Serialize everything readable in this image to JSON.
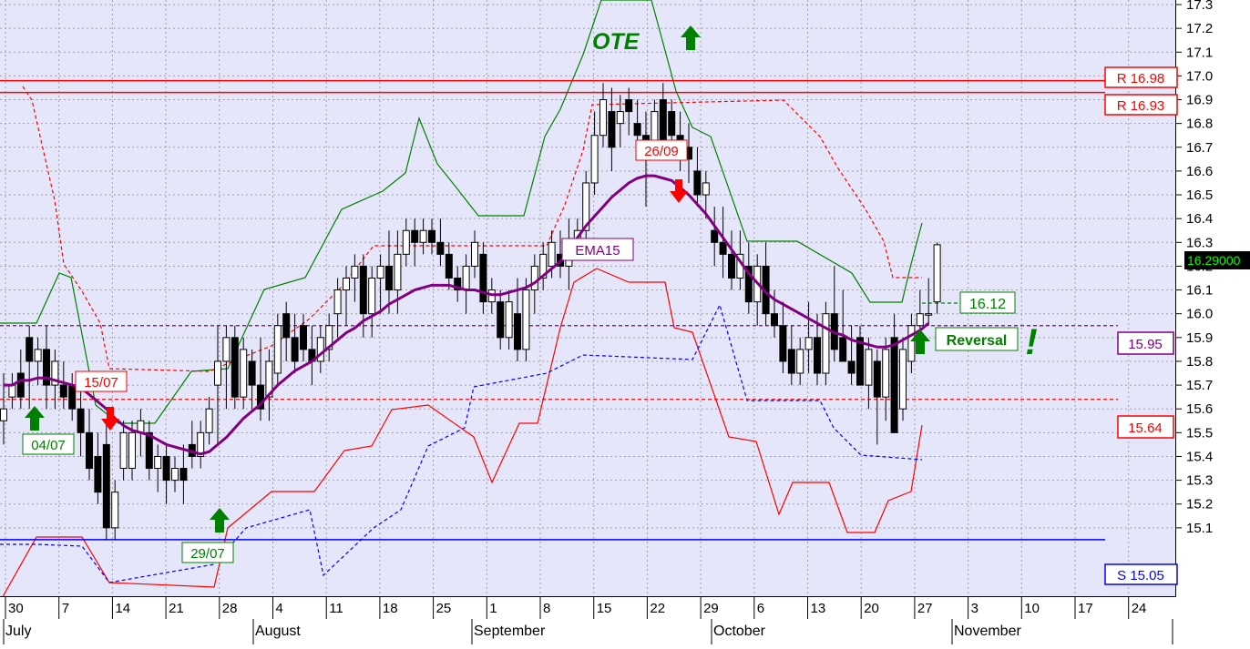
{
  "chart_data": {
    "type": "candlestick",
    "title": "",
    "xlabel": "",
    "ylabel": "",
    "ylim": [
      15.0,
      17.3
    ],
    "yticks": [
      "17.3",
      "17.2",
      "17.1",
      "17.0",
      "16.9",
      "16.8",
      "16.7",
      "16.6",
      "16.5",
      "16.4",
      "16.3",
      "16.2",
      "16.1",
      "16.0",
      "15.9",
      "15.8",
      "15.7",
      "15.6",
      "15.5",
      "15.4",
      "15.3",
      "15.2",
      "15.1"
    ],
    "day_labels": [
      "30",
      "7",
      "14",
      "21",
      "28",
      "4",
      "11",
      "18",
      "25",
      "1",
      "8",
      "15",
      "22",
      "29",
      "6",
      "13",
      "20",
      "27",
      "3",
      "10",
      "17",
      "24"
    ],
    "month_labels": [
      "July",
      "August",
      "September",
      "October",
      "November"
    ],
    "current_price_label": "16.29000",
    "candles": [
      {
        "o": 15.55,
        "h": 15.75,
        "l": 15.45,
        "c": 15.6
      },
      {
        "o": 15.65,
        "h": 15.75,
        "l": 15.6,
        "c": 15.7
      },
      {
        "o": 15.75,
        "h": 15.85,
        "l": 15.6,
        "c": 15.65
      },
      {
        "o": 15.9,
        "h": 15.95,
        "l": 15.6,
        "c": 15.8
      },
      {
        "o": 15.8,
        "h": 15.9,
        "l": 15.7,
        "c": 15.85
      },
      {
        "o": 15.85,
        "h": 15.95,
        "l": 15.6,
        "c": 15.7
      },
      {
        "o": 15.7,
        "h": 15.85,
        "l": 15.6,
        "c": 15.8
      },
      {
        "o": 15.7,
        "h": 15.8,
        "l": 15.6,
        "c": 15.65
      },
      {
        "o": 15.7,
        "h": 15.75,
        "l": 15.55,
        "c": 15.6
      },
      {
        "o": 15.6,
        "h": 15.7,
        "l": 15.4,
        "c": 15.5
      },
      {
        "o": 15.5,
        "h": 15.6,
        "l": 15.3,
        "c": 15.35
      },
      {
        "o": 15.4,
        "h": 15.5,
        "l": 15.2,
        "c": 15.25
      },
      {
        "o": 15.45,
        "h": 15.55,
        "l": 15.05,
        "c": 15.1
      },
      {
        "o": 15.1,
        "h": 15.3,
        "l": 15.05,
        "c": 15.25
      },
      {
        "o": 15.35,
        "h": 15.55,
        "l": 15.3,
        "c": 15.5
      },
      {
        "o": 15.35,
        "h": 15.55,
        "l": 15.3,
        "c": 15.5
      },
      {
        "o": 15.5,
        "h": 15.6,
        "l": 15.4,
        "c": 15.55
      },
      {
        "o": 15.5,
        "h": 15.55,
        "l": 15.3,
        "c": 15.35
      },
      {
        "o": 15.35,
        "h": 15.45,
        "l": 15.25,
        "c": 15.4
      },
      {
        "o": 15.4,
        "h": 15.45,
        "l": 15.2,
        "c": 15.3
      },
      {
        "o": 15.3,
        "h": 15.4,
        "l": 15.25,
        "c": 15.35
      },
      {
        "o": 15.35,
        "h": 15.45,
        "l": 15.2,
        "c": 15.3
      },
      {
        "o": 15.45,
        "h": 15.55,
        "l": 15.35,
        "c": 15.4
      },
      {
        "o": 15.4,
        "h": 15.55,
        "l": 15.35,
        "c": 15.5
      },
      {
        "o": 15.5,
        "h": 15.65,
        "l": 15.45,
        "c": 15.6
      },
      {
        "o": 15.7,
        "h": 15.95,
        "l": 15.45,
        "c": 15.8
      },
      {
        "o": 15.8,
        "h": 15.95,
        "l": 15.6,
        "c": 15.9
      },
      {
        "o": 15.9,
        "h": 15.95,
        "l": 15.6,
        "c": 15.65
      },
      {
        "o": 15.65,
        "h": 15.9,
        "l": 15.6,
        "c": 15.85
      },
      {
        "o": 15.8,
        "h": 15.85,
        "l": 15.6,
        "c": 15.7
      },
      {
        "o": 15.7,
        "h": 15.9,
        "l": 15.55,
        "c": 15.6
      },
      {
        "o": 15.65,
        "h": 15.85,
        "l": 15.55,
        "c": 15.8
      },
      {
        "o": 15.75,
        "h": 16.0,
        "l": 15.7,
        "c": 15.95
      },
      {
        "o": 16.0,
        "h": 16.05,
        "l": 15.8,
        "c": 15.9
      },
      {
        "o": 15.9,
        "h": 16.0,
        "l": 15.75,
        "c": 15.8
      },
      {
        "o": 15.95,
        "h": 16.0,
        "l": 15.8,
        "c": 15.85
      },
      {
        "o": 15.85,
        "h": 15.95,
        "l": 15.7,
        "c": 15.8
      },
      {
        "o": 15.8,
        "h": 15.95,
        "l": 15.75,
        "c": 15.9
      },
      {
        "o": 15.85,
        "h": 16.0,
        "l": 15.8,
        "c": 15.95
      },
      {
        "o": 16.0,
        "h": 16.15,
        "l": 15.9,
        "c": 16.1
      },
      {
        "o": 16.1,
        "h": 16.2,
        "l": 15.95,
        "c": 16.15
      },
      {
        "o": 16.15,
        "h": 16.25,
        "l": 16.05,
        "c": 16.2
      },
      {
        "o": 16.2,
        "h": 16.25,
        "l": 15.9,
        "c": 16.0
      },
      {
        "o": 16.0,
        "h": 16.2,
        "l": 15.9,
        "c": 16.15
      },
      {
        "o": 16.15,
        "h": 16.25,
        "l": 16.0,
        "c": 16.2
      },
      {
        "o": 16.2,
        "h": 16.35,
        "l": 16.0,
        "c": 16.1
      },
      {
        "o": 16.1,
        "h": 16.35,
        "l": 16.0,
        "c": 16.25
      },
      {
        "o": 16.25,
        "h": 16.4,
        "l": 16.2,
        "c": 16.35
      },
      {
        "o": 16.35,
        "h": 16.4,
        "l": 16.2,
        "c": 16.3
      },
      {
        "o": 16.3,
        "h": 16.4,
        "l": 16.25,
        "c": 16.35
      },
      {
        "o": 16.35,
        "h": 16.4,
        "l": 16.25,
        "c": 16.3
      },
      {
        "o": 16.3,
        "h": 16.4,
        "l": 16.2,
        "c": 16.25
      },
      {
        "o": 16.25,
        "h": 16.3,
        "l": 16.1,
        "c": 16.15
      },
      {
        "o": 16.15,
        "h": 16.2,
        "l": 16.05,
        "c": 16.1
      },
      {
        "o": 16.1,
        "h": 16.25,
        "l": 16.0,
        "c": 16.2
      },
      {
        "o": 16.2,
        "h": 16.35,
        "l": 16.15,
        "c": 16.3
      },
      {
        "o": 16.25,
        "h": 16.3,
        "l": 16.0,
        "c": 16.05
      },
      {
        "o": 16.05,
        "h": 16.15,
        "l": 16.0,
        "c": 16.1
      },
      {
        "o": 16.05,
        "h": 16.1,
        "l": 15.85,
        "c": 15.9
      },
      {
        "o": 15.9,
        "h": 16.1,
        "l": 15.85,
        "c": 16.05
      },
      {
        "o": 16.0,
        "h": 16.15,
        "l": 15.8,
        "c": 15.85
      },
      {
        "o": 15.85,
        "h": 16.15,
        "l": 15.8,
        "c": 16.1
      },
      {
        "o": 16.1,
        "h": 16.25,
        "l": 16.0,
        "c": 16.2
      },
      {
        "o": 16.15,
        "h": 16.3,
        "l": 16.1,
        "c": 16.25
      },
      {
        "o": 16.2,
        "h": 16.35,
        "l": 16.15,
        "c": 16.3
      },
      {
        "o": 16.25,
        "h": 16.35,
        "l": 16.15,
        "c": 16.2
      },
      {
        "o": 16.2,
        "h": 16.4,
        "l": 16.1,
        "c": 16.3
      },
      {
        "o": 16.3,
        "h": 16.4,
        "l": 16.25,
        "c": 16.35
      },
      {
        "o": 16.35,
        "h": 16.6,
        "l": 16.3,
        "c": 16.55
      },
      {
        "o": 16.55,
        "h": 16.85,
        "l": 16.5,
        "c": 16.75
      },
      {
        "o": 16.75,
        "h": 16.97,
        "l": 16.7,
        "c": 16.9
      },
      {
        "o": 16.85,
        "h": 16.95,
        "l": 16.6,
        "c": 16.7
      },
      {
        "o": 16.8,
        "h": 16.92,
        "l": 16.7,
        "c": 16.85
      },
      {
        "o": 16.9,
        "h": 16.95,
        "l": 16.75,
        "c": 16.85
      },
      {
        "o": 16.8,
        "h": 16.9,
        "l": 16.65,
        "c": 16.75
      },
      {
        "o": 16.75,
        "h": 16.85,
        "l": 16.45,
        "c": 16.7
      },
      {
        "o": 16.7,
        "h": 16.9,
        "l": 16.65,
        "c": 16.85
      },
      {
        "o": 16.9,
        "h": 16.97,
        "l": 16.65,
        "c": 16.7
      },
      {
        "o": 16.85,
        "h": 16.9,
        "l": 16.65,
        "c": 16.75
      },
      {
        "o": 16.75,
        "h": 16.85,
        "l": 16.6,
        "c": 16.7
      },
      {
        "o": 16.7,
        "h": 16.8,
        "l": 16.55,
        "c": 16.65
      },
      {
        "o": 16.6,
        "h": 16.7,
        "l": 16.45,
        "c": 16.5
      },
      {
        "o": 16.5,
        "h": 16.6,
        "l": 16.4,
        "c": 16.55
      },
      {
        "o": 16.35,
        "h": 16.45,
        "l": 16.2,
        "c": 16.3
      },
      {
        "o": 16.3,
        "h": 16.45,
        "l": 16.15,
        "c": 16.25
      },
      {
        "o": 16.25,
        "h": 16.35,
        "l": 16.1,
        "c": 16.15
      },
      {
        "o": 16.15,
        "h": 16.35,
        "l": 16.1,
        "c": 16.25
      },
      {
        "o": 16.2,
        "h": 16.3,
        "l": 16.0,
        "c": 16.05
      },
      {
        "o": 16.05,
        "h": 16.25,
        "l": 15.95,
        "c": 16.2
      },
      {
        "o": 16.2,
        "h": 16.3,
        "l": 15.95,
        "c": 16.0
      },
      {
        "o": 16.0,
        "h": 16.1,
        "l": 15.9,
        "c": 15.95
      },
      {
        "o": 15.95,
        "h": 16.05,
        "l": 15.75,
        "c": 15.8
      },
      {
        "o": 15.85,
        "h": 15.95,
        "l": 15.7,
        "c": 15.75
      },
      {
        "o": 15.75,
        "h": 15.9,
        "l": 15.7,
        "c": 15.85
      },
      {
        "o": 15.85,
        "h": 16.05,
        "l": 15.75,
        "c": 15.9
      },
      {
        "o": 15.9,
        "h": 16.0,
        "l": 15.7,
        "c": 15.75
      },
      {
        "o": 15.75,
        "h": 16.05,
        "l": 15.7,
        "c": 16.0
      },
      {
        "o": 16.0,
        "h": 16.2,
        "l": 15.8,
        "c": 15.85
      },
      {
        "o": 15.9,
        "h": 16.1,
        "l": 15.8,
        "c": 15.8
      },
      {
        "o": 15.8,
        "h": 15.95,
        "l": 15.7,
        "c": 15.75
      },
      {
        "o": 15.9,
        "h": 15.95,
        "l": 15.7,
        "c": 15.7
      },
      {
        "o": 15.7,
        "h": 15.9,
        "l": 15.6,
        "c": 15.85
      },
      {
        "o": 15.8,
        "h": 15.85,
        "l": 15.45,
        "c": 15.65
      },
      {
        "o": 15.65,
        "h": 15.9,
        "l": 15.55,
        "c": 15.85
      },
      {
        "o": 15.9,
        "h": 16.0,
        "l": 15.5,
        "c": 15.5
      },
      {
        "o": 15.6,
        "h": 15.9,
        "l": 15.55,
        "c": 15.85
      },
      {
        "o": 15.8,
        "h": 16.0,
        "l": 15.75,
        "c": 15.95
      },
      {
        "o": 15.95,
        "h": 16.1,
        "l": 15.9,
        "c": 16.0
      },
      {
        "o": 16.0,
        "h": 16.15,
        "l": 15.95,
        "c": 16.0
      },
      {
        "o": 16.05,
        "h": 16.3,
        "l": 16.0,
        "c": 16.29
      }
    ],
    "series": [
      {
        "name": "EMA15",
        "color": "#800080",
        "values": [
          15.7,
          15.7,
          15.72,
          15.72,
          15.73,
          15.73,
          15.72,
          15.71,
          15.7,
          15.69,
          15.66,
          15.63,
          15.6,
          15.56,
          15.53,
          15.51,
          15.5,
          15.49,
          15.47,
          15.45,
          15.44,
          15.43,
          15.42,
          15.41,
          15.42,
          15.45,
          15.48,
          15.52,
          15.56,
          15.59,
          15.62,
          15.66,
          15.7,
          15.73,
          15.76,
          15.78,
          15.8,
          15.83,
          15.86,
          15.89,
          15.92,
          15.94,
          15.97,
          15.99,
          16.01,
          16.04,
          16.06,
          16.08,
          16.1,
          16.11,
          16.12,
          16.12,
          16.12,
          16.11,
          16.1,
          16.1,
          16.09,
          16.08,
          16.08,
          16.09,
          16.1,
          16.11,
          16.13,
          16.16,
          16.19,
          16.22,
          16.27,
          16.32,
          16.37,
          16.41,
          16.45,
          16.49,
          16.52,
          16.55,
          16.57,
          16.58,
          16.58,
          16.57,
          16.56,
          16.53,
          16.5,
          16.46,
          16.42,
          16.37,
          16.32,
          16.27,
          16.22,
          16.17,
          16.13,
          16.09,
          16.06,
          16.04,
          16.02,
          16.0,
          15.98,
          15.96,
          15.94,
          15.92,
          15.91,
          15.89,
          15.88,
          15.87,
          15.86,
          15.86,
          15.87,
          15.89,
          15.91,
          15.93,
          15.96
        ]
      }
    ],
    "horizontal_lines": [
      {
        "label": "R 16.98",
        "value": 16.98,
        "color": "#ff0000"
      },
      {
        "label": "R 16.93",
        "value": 16.93,
        "color": "#ff0000"
      },
      {
        "label": "15.95",
        "value": 15.95,
        "color": "#800080"
      },
      {
        "label": "15.64",
        "value": 15.64,
        "color": "#ff0000"
      },
      {
        "label": "S 15.05",
        "value": 15.05,
        "color": "#0000ff"
      }
    ],
    "annotations": [
      {
        "text": "OTE",
        "color": "#008000"
      },
      {
        "text": "26/09",
        "color": "#ff0000"
      },
      {
        "text": "15/07",
        "color": "#ff0000"
      },
      {
        "text": "04/07",
        "color": "#008000"
      },
      {
        "text": "29/07",
        "color": "#008000"
      },
      {
        "text": "EMA15",
        "color": "#800080"
      },
      {
        "text": "16.12",
        "color": "#008000"
      },
      {
        "text": "Reversal",
        "color": "#008000"
      },
      {
        "text": "!",
        "color": "#008000"
      }
    ],
    "grid": true,
    "legend": "none"
  },
  "colors": {
    "plot_bg": "#e6e6fa",
    "grid": "#a0a0a0",
    "bull": "#ffffff",
    "bear": "#000000"
  }
}
